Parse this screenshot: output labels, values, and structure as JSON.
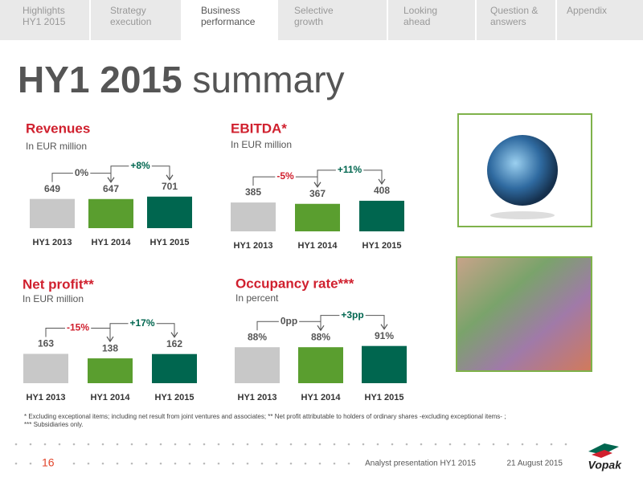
{
  "nav": {
    "tabs": [
      [
        "Highlights",
        "HY1 2015"
      ],
      [
        "Strategy",
        "execution"
      ],
      [
        "Business",
        "performance"
      ],
      [
        "Selective",
        "growth"
      ],
      [
        "Looking",
        "ahead"
      ],
      [
        "Question &",
        "answers"
      ],
      [
        "Appendix"
      ]
    ],
    "active": 2
  },
  "title": {
    "bold": "HY1 2015",
    "light": "summary"
  },
  "chart_data": [
    {
      "type": "bar",
      "title": "Revenues",
      "subtitle": "In EUR million",
      "categories": [
        "HY1 2013",
        "HY1 2014",
        "HY1 2015"
      ],
      "values": [
        649,
        647,
        701
      ],
      "colors": [
        "#c8c8c8",
        "#5a9e2f",
        "#00664f"
      ],
      "ylim": [
        0,
        1000
      ],
      "annotations": [
        {
          "text": "0%",
          "color": "#555555"
        },
        {
          "text": "+8%",
          "color": "#00664f"
        }
      ]
    },
    {
      "type": "bar",
      "title": "EBITDA*",
      "subtitle": "In EUR million",
      "categories": [
        "HY1 2013",
        "HY1 2014",
        "HY1 2015"
      ],
      "values": [
        385,
        367,
        408
      ],
      "colors": [
        "#c8c8c8",
        "#5a9e2f",
        "#00664f"
      ],
      "ylim": [
        0,
        600
      ],
      "annotations": [
        {
          "text": "-5%",
          "color": "#d0202e"
        },
        {
          "text": "+11%",
          "color": "#00664f"
        }
      ]
    },
    {
      "type": "bar",
      "title": "Net profit**",
      "subtitle": "In EUR million",
      "categories": [
        "HY1 2013",
        "HY1 2014",
        "HY1 2015"
      ],
      "values": [
        163,
        138,
        162
      ],
      "colors": [
        "#c8c8c8",
        "#5a9e2f",
        "#00664f"
      ],
      "ylim": [
        0,
        250
      ],
      "annotations": [
        {
          "text": "-15%",
          "color": "#d0202e"
        },
        {
          "text": "+17%",
          "color": "#00664f"
        }
      ]
    },
    {
      "type": "bar",
      "title": "Occupancy rate***",
      "subtitle": "In percent",
      "categories": [
        "HY1 2013",
        "HY1 2014",
        "HY1 2015"
      ],
      "values": [
        88,
        88,
        91
      ],
      "value_labels": [
        "88%",
        "88%",
        "91%"
      ],
      "colors": [
        "#c8c8c8",
        "#5a9e2f",
        "#00664f"
      ],
      "ylim": [
        0,
        110
      ],
      "annotations": [
        {
          "text": "0pp",
          "color": "#555555"
        },
        {
          "text": "+3pp",
          "color": "#00664f"
        }
      ]
    }
  ],
  "footnote": [
    "* Excluding exceptional items; including net result from joint ventures and associates; ** Net profit attributable to holders of ordinary shares -excluding exceptional items- ;",
    "*** Subsidiaries only."
  ],
  "footer": {
    "page": "16",
    "event": "Analyst presentation HY1 2015",
    "date": "21 August 2015",
    "logo": "Vopak"
  }
}
